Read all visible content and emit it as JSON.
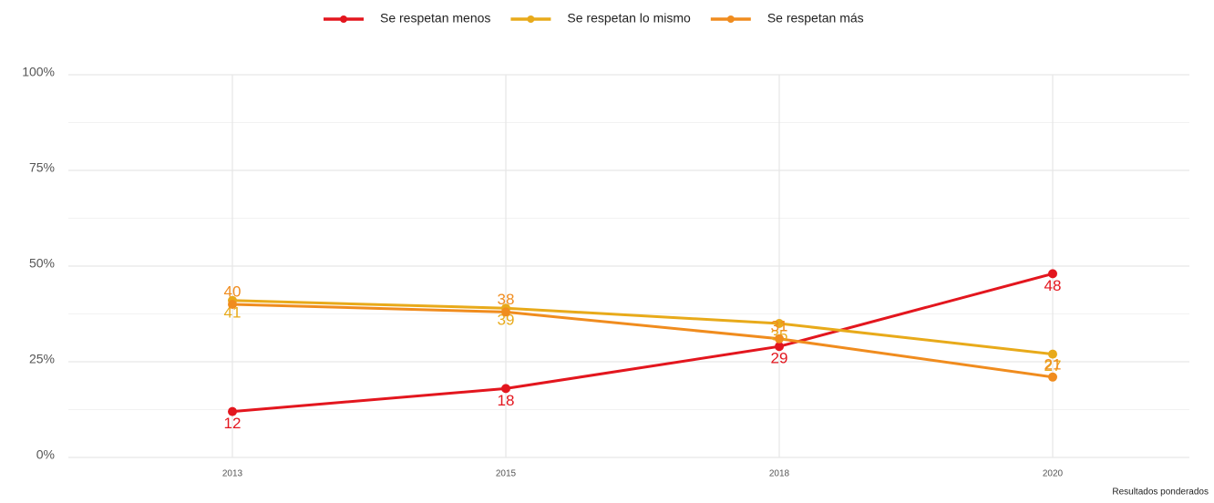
{
  "chart_data": {
    "type": "line",
    "categories": [
      "2013",
      "2015",
      "2018",
      "2020"
    ],
    "series": [
      {
        "name": "Se respetan menos",
        "color": "#e3161e",
        "values": [
          12,
          18,
          29,
          48
        ]
      },
      {
        "name": "Se respetan lo mismo",
        "color": "#e8aa1a",
        "values": [
          41,
          39,
          35,
          27
        ]
      },
      {
        "name": "Se respetan más",
        "color": "#f08c1e",
        "values": [
          40,
          38,
          31,
          21
        ]
      }
    ],
    "ylim": [
      0,
      100
    ],
    "yticks": [
      {
        "value": 0,
        "label": "0%"
      },
      {
        "value": 25,
        "label": "25%"
      },
      {
        "value": 50,
        "label": "50%"
      },
      {
        "value": 75,
        "label": "75%"
      },
      {
        "value": 100,
        "label": "100%"
      }
    ],
    "grid": true,
    "legend": "top",
    "caption": "Resultados ponderados"
  }
}
